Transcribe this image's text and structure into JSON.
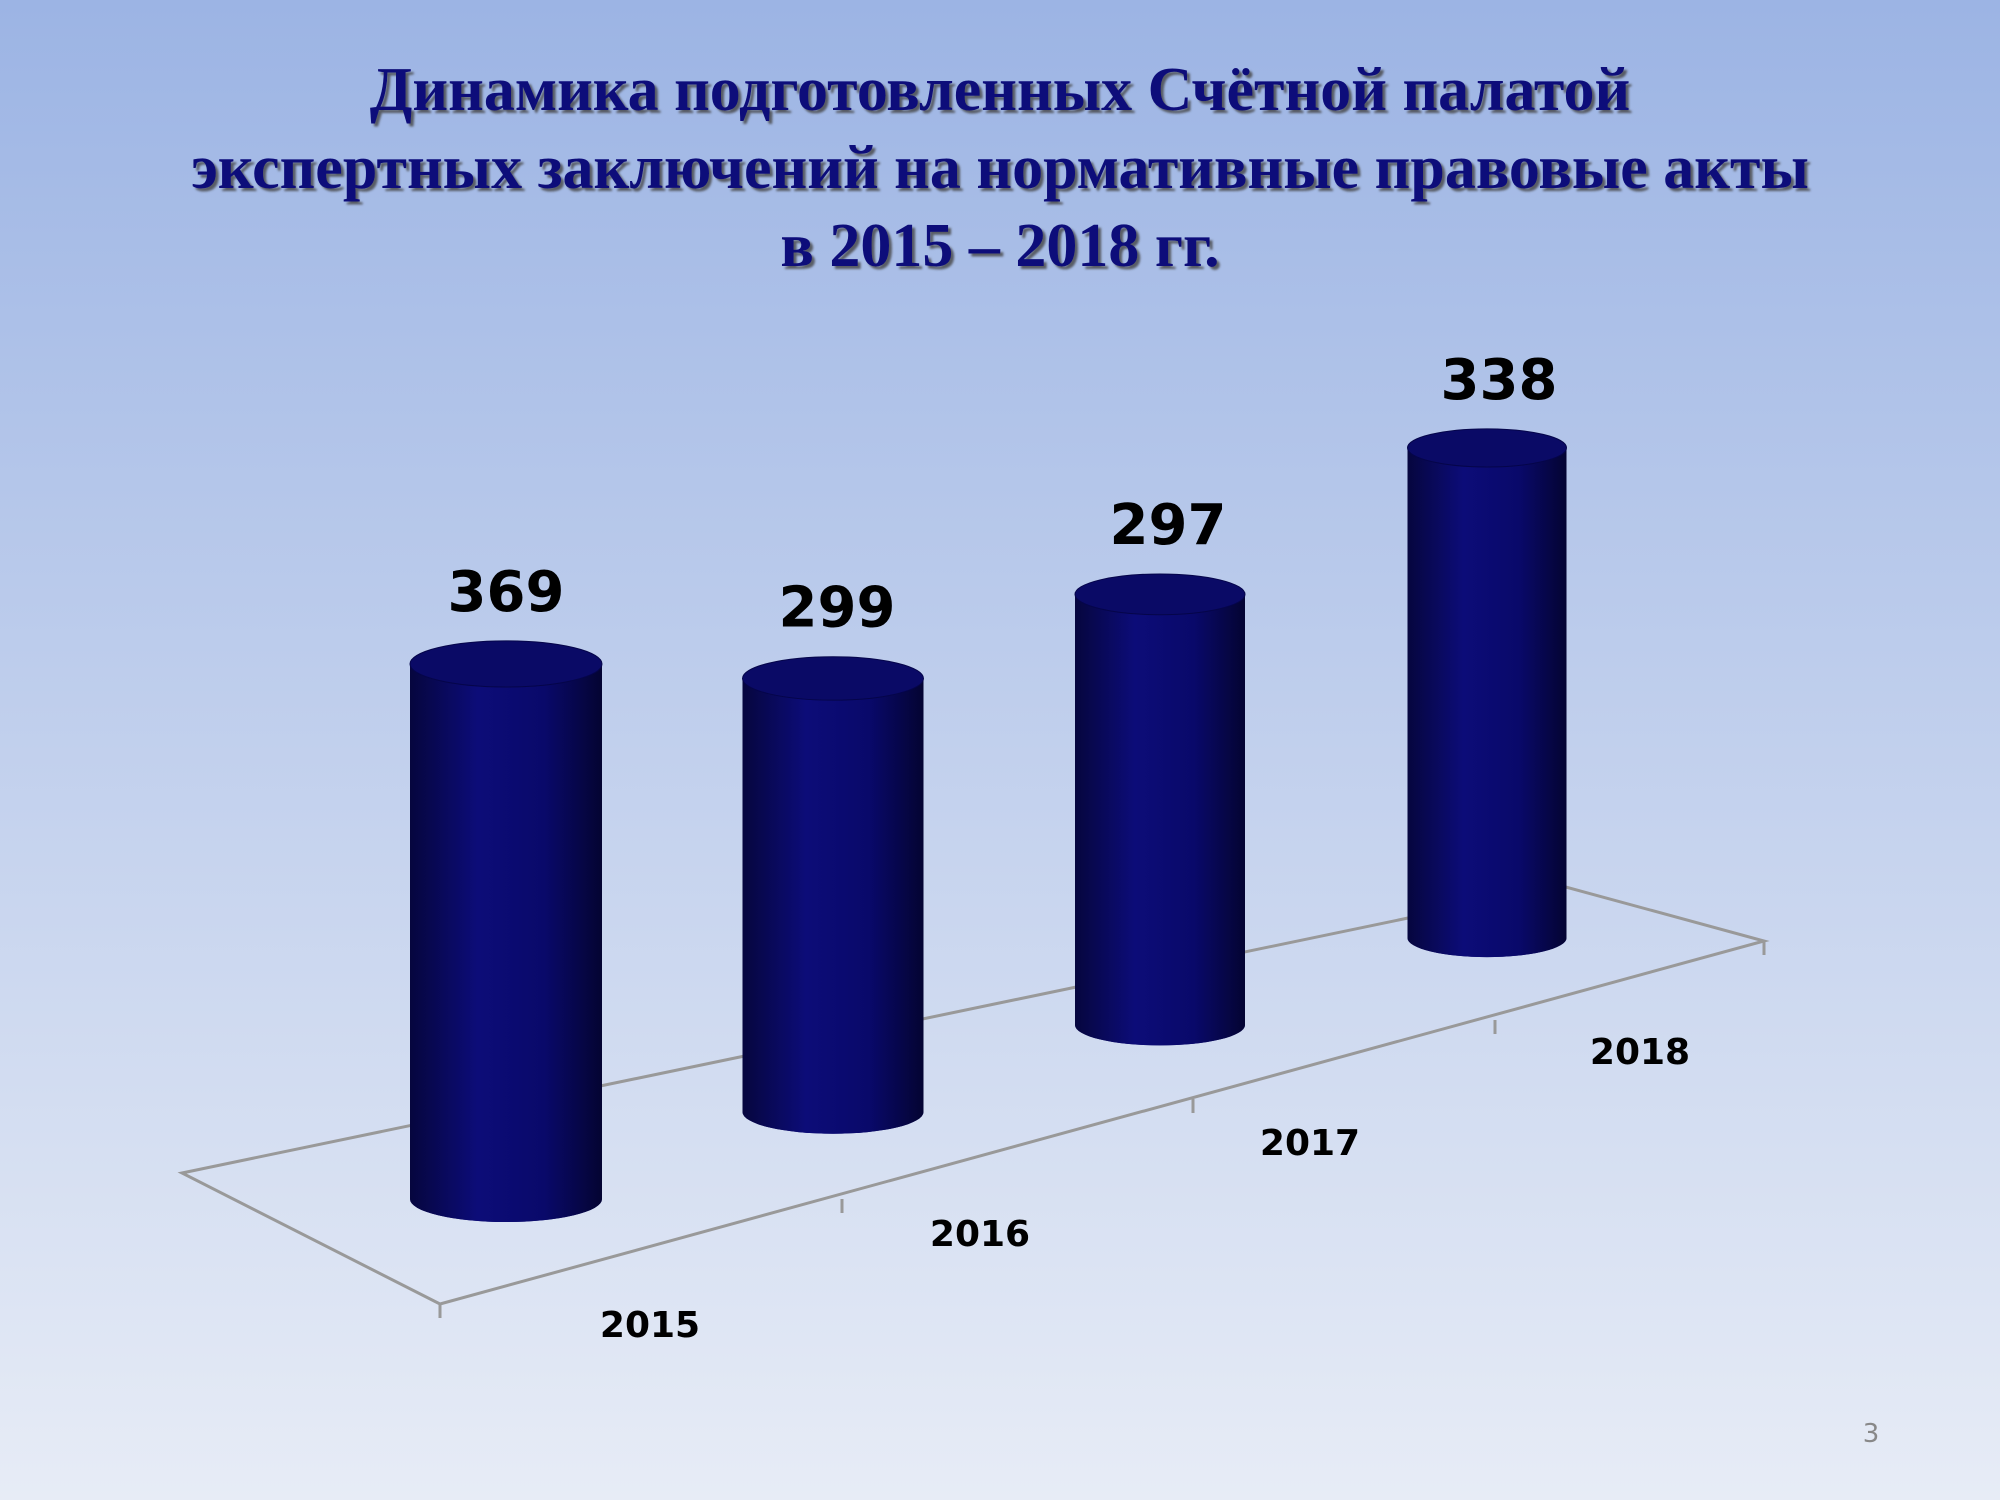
{
  "chart_data": {
    "type": "bar",
    "title": [
      "Динамика подготовленных Счётной палатой",
      "экспертных заключений на нормативные правовые акты",
      "в 2015 – 2018 гг."
    ],
    "categories": [
      "2015",
      "2016",
      "2017",
      "2018"
    ],
    "values": [
      369,
      299,
      297,
      338
    ],
    "color": "#0a0a6e",
    "page_number": "3"
  }
}
